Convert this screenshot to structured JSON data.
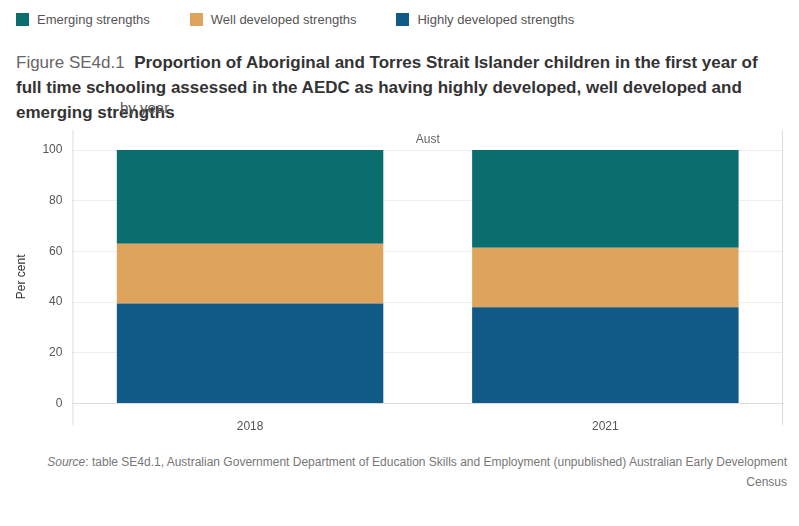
{
  "chart_data": {
    "type": "bar",
    "figure_label": "Figure SE4d.1",
    "title": "Proportion of Aboriginal and Torres Strait Islander children in the first year of full time schooling assessed in the AEDC as having highly developed, well developed and emerging strengths",
    "subtitle": "by year",
    "panel": "Aust",
    "y_label": "Per cent",
    "source_label": "Source",
    "source": ": table SE4d.1, Australian Government Department of Education Skills and Employment (unpublished) Australian Early Development Census",
    "categories": [
      "2018",
      "2021"
    ],
    "series": [
      {
        "name": "Highly developed strengths",
        "color": "#0f5a87",
        "values": [
          39.5,
          38
        ]
      },
      {
        "name": "Well developed strengths",
        "color": "#dea45e",
        "values": [
          23.5,
          23.5
        ]
      },
      {
        "name": "Emerging strengths",
        "color": "#0a6d6e",
        "values": [
          37,
          38.5
        ]
      }
    ],
    "stacked": true,
    "ylim": [
      0,
      100
    ],
    "yticks": [
      0,
      20,
      40,
      60,
      80,
      100
    ],
    "grid": true,
    "legend": "top-left"
  }
}
